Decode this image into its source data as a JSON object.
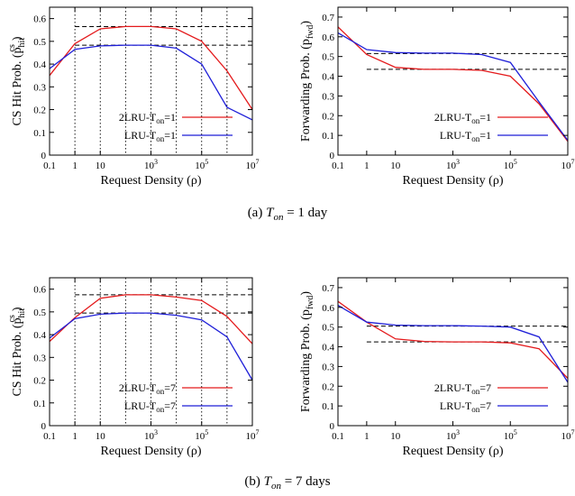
{
  "captions": {
    "a_prefix": "(a)",
    "a_var": "T",
    "a_sub": "on",
    "a_rest": "= 1 day",
    "b_prefix": "(b)",
    "b_var": "T",
    "b_sub": "on",
    "b_rest": "= 7 days"
  },
  "colors": {
    "red": "#e41a1c",
    "blue": "#1f1fd8",
    "black": "#000000"
  },
  "chart_data": [
    {
      "type": "line",
      "id": "a-left",
      "xscale": "log",
      "xlabel": "Request Density (ρ)",
      "ylabel": "CS Hit Prob. (p",
      "ylabel_sub": "hit",
      "ylabel_sup": "cs",
      "ylabel_close": ")",
      "xticks": [
        "0.1",
        "1",
        "10",
        "10^3",
        "10^5",
        "10^7"
      ],
      "xlim": [
        0.1,
        10000000
      ],
      "ylim": [
        0,
        0.65
      ],
      "yticks": [
        "0",
        "0.1",
        "0.2",
        "0.3",
        "0.4",
        "0.5",
        "0.6"
      ],
      "vgrid": [
        1,
        10,
        100,
        1000,
        10000,
        100000,
        1000000
      ],
      "hlines": [
        0.565,
        0.483
      ],
      "legend": "bottom-right",
      "series": [
        {
          "name": "2LRU-T",
          "name_sub": "on",
          "name_rest": "=1",
          "color": "red",
          "x": [
            0.1,
            1,
            10,
            100,
            1000,
            10000,
            100000,
            1000000,
            10000000
          ],
          "y": [
            0.35,
            0.49,
            0.555,
            0.565,
            0.565,
            0.555,
            0.5,
            0.37,
            0.2
          ]
        },
        {
          "name": "LRU-T",
          "name_sub": "on",
          "name_rest": "=1",
          "color": "blue",
          "x": [
            0.1,
            1,
            10,
            100,
            1000,
            10000,
            100000,
            1000000,
            10000000
          ],
          "y": [
            0.38,
            0.465,
            0.48,
            0.483,
            0.483,
            0.47,
            0.4,
            0.21,
            0.155
          ]
        }
      ]
    },
    {
      "type": "line",
      "id": "a-right",
      "xscale": "log",
      "xlabel": "Request Density (ρ)",
      "ylabel": "Forwarding Prob. (p",
      "ylabel_sub": "fwd",
      "ylabel_sup": "",
      "ylabel_close": ")",
      "xticks": [
        "0.1",
        "1",
        "10",
        "10^3",
        "10^5",
        "10^7"
      ],
      "xlim": [
        0.1,
        10000000
      ],
      "ylim": [
        0,
        0.75
      ],
      "yticks": [
        "0",
        "0.1",
        "0.2",
        "0.3",
        "0.4",
        "0.5",
        "0.6",
        "0.7"
      ],
      "vgrid": [],
      "hlines": [
        0.515,
        0.435
      ],
      "legend": "bottom-right",
      "series": [
        {
          "name": "2LRU-T",
          "name_sub": "on",
          "name_rest": "=1",
          "color": "red",
          "x": [
            0.1,
            1,
            10,
            100,
            1000,
            10000,
            100000,
            1000000,
            10000000
          ],
          "y": [
            0.65,
            0.51,
            0.445,
            0.435,
            0.435,
            0.43,
            0.4,
            0.26,
            0.07
          ]
        },
        {
          "name": "LRU-T",
          "name_sub": "on",
          "name_rest": "=1",
          "color": "blue",
          "x": [
            0.1,
            1,
            10,
            100,
            1000,
            10000,
            100000,
            1000000,
            10000000
          ],
          "y": [
            0.62,
            0.535,
            0.52,
            0.517,
            0.517,
            0.51,
            0.47,
            0.27,
            0.075
          ]
        }
      ]
    },
    {
      "type": "line",
      "id": "b-left",
      "xscale": "log",
      "xlabel": "Request Density (ρ)",
      "ylabel": "CS Hit Prob. (p",
      "ylabel_sub": "hit",
      "ylabel_sup": "cs",
      "ylabel_close": ")",
      "xticks": [
        "0.1",
        "1",
        "10",
        "10^3",
        "10^5",
        "10^7"
      ],
      "xlim": [
        0.1,
        10000000
      ],
      "ylim": [
        0,
        0.65
      ],
      "yticks": [
        "0",
        "0.1",
        "0.2",
        "0.3",
        "0.4",
        "0.5",
        "0.6"
      ],
      "vgrid": [
        1,
        10,
        100,
        1000,
        10000,
        100000,
        1000000
      ],
      "hlines": [
        0.575,
        0.495
      ],
      "legend": "bottom-right",
      "series": [
        {
          "name": "2LRU-T",
          "name_sub": "on",
          "name_rest": "=7",
          "color": "red",
          "x": [
            0.1,
            1,
            10,
            100,
            1000,
            10000,
            100000,
            1000000,
            10000000
          ],
          "y": [
            0.37,
            0.475,
            0.56,
            0.575,
            0.575,
            0.565,
            0.55,
            0.48,
            0.36
          ]
        },
        {
          "name": "LRU-T",
          "name_sub": "on",
          "name_rest": "=7",
          "color": "blue",
          "x": [
            0.1,
            1,
            10,
            100,
            1000,
            10000,
            100000,
            1000000,
            10000000
          ],
          "y": [
            0.385,
            0.47,
            0.49,
            0.495,
            0.495,
            0.485,
            0.465,
            0.39,
            0.2
          ]
        }
      ]
    },
    {
      "type": "line",
      "id": "b-right",
      "xscale": "log",
      "xlabel": "Request Density (ρ)",
      "ylabel": "Forwarding Prob. (p",
      "ylabel_sub": "fwd",
      "ylabel_sup": "",
      "ylabel_close": ")",
      "xticks": [
        "0.1",
        "1",
        "10",
        "10^3",
        "10^5",
        "10^7"
      ],
      "xlim": [
        0.1,
        10000000
      ],
      "ylim": [
        0,
        0.75
      ],
      "yticks": [
        "0",
        "0.1",
        "0.2",
        "0.3",
        "0.4",
        "0.5",
        "0.6",
        "0.7"
      ],
      "vgrid": [],
      "hlines": [
        0.505,
        0.425
      ],
      "legend": "bottom-right",
      "series": [
        {
          "name": "2LRU-T",
          "name_sub": "on",
          "name_rest": "=7",
          "color": "red",
          "x": [
            0.1,
            1,
            10,
            100,
            1000,
            10000,
            100000,
            1000000,
            10000000
          ],
          "y": [
            0.63,
            0.525,
            0.44,
            0.427,
            0.425,
            0.425,
            0.42,
            0.39,
            0.24
          ]
        },
        {
          "name": "LRU-T",
          "name_sub": "on",
          "name_rest": "=7",
          "color": "blue",
          "x": [
            0.1,
            1,
            10,
            100,
            1000,
            10000,
            100000,
            1000000,
            10000000
          ],
          "y": [
            0.61,
            0.525,
            0.51,
            0.507,
            0.507,
            0.505,
            0.5,
            0.45,
            0.22
          ]
        }
      ]
    }
  ]
}
